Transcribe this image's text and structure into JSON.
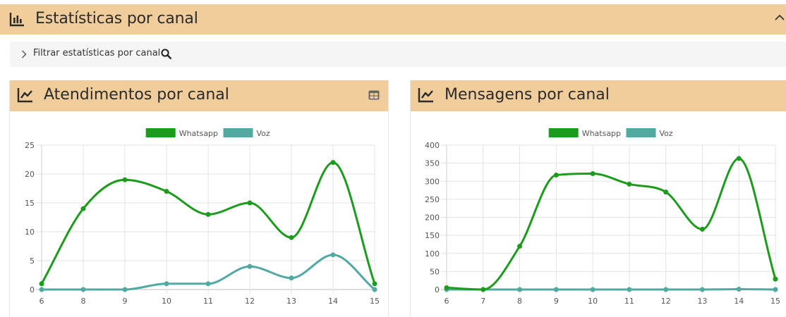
{
  "section": {
    "title": "Estatísticas por canal",
    "icon": "bar-chart-icon",
    "collapse_icon": "chevron-up-icon"
  },
  "filter": {
    "label": "Filtrar estatísticas por canal",
    "chevron_icon": "chevron-right-icon",
    "search_icon": "search-icon"
  },
  "colors": {
    "header_bg": "#f1cd9b",
    "whatsapp": "#1c9b1c",
    "voz": "#52a9a2"
  },
  "cards": [
    {
      "title": "Atendimentos por canal",
      "icon": "line-chart-icon",
      "action_icon": "table-icon"
    },
    {
      "title": "Mensagens por canal",
      "icon": "line-chart-icon"
    }
  ],
  "chart_data": [
    {
      "type": "line",
      "title": "",
      "x": [
        "6",
        "8",
        "9",
        "10",
        "11",
        "12",
        "13",
        "14",
        "15"
      ],
      "ylim": [
        0,
        25
      ],
      "yticks": [
        0,
        5,
        10,
        15,
        20,
        25
      ],
      "grid": true,
      "legend": "top-center",
      "series": [
        {
          "name": "Whatsapp",
          "color": "#1c9b1c",
          "values": [
            1,
            14,
            19,
            17,
            13,
            15,
            9,
            22,
            1
          ]
        },
        {
          "name": "Voz",
          "color": "#52a9a2",
          "values": [
            0,
            0,
            0,
            1,
            1,
            4,
            2,
            6,
            0
          ]
        }
      ]
    },
    {
      "type": "line",
      "title": "",
      "x": [
        "6",
        "7",
        "8",
        "9",
        "10",
        "11",
        "12",
        "13",
        "14",
        "15"
      ],
      "ylim": [
        0,
        400
      ],
      "yticks": [
        0,
        50,
        100,
        150,
        200,
        250,
        300,
        350,
        400
      ],
      "grid": true,
      "legend": "top-center",
      "series": [
        {
          "name": "Whatsapp",
          "color": "#1c9b1c",
          "values": [
            5,
            0,
            120,
            317,
            321,
            292,
            270,
            167,
            363,
            29
          ]
        },
        {
          "name": "Voz",
          "color": "#52a9a2",
          "values": [
            0,
            0,
            0,
            0,
            0,
            0,
            0,
            0,
            1,
            0
          ]
        }
      ]
    }
  ]
}
